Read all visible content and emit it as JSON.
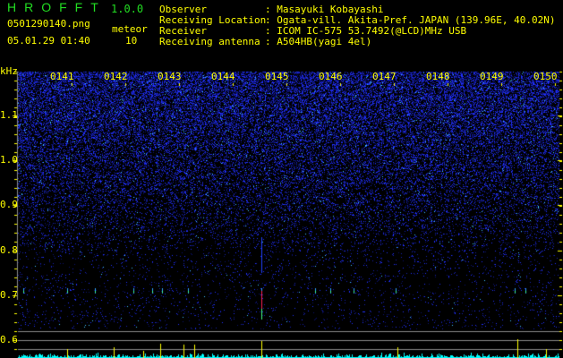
{
  "header": {
    "app_title": "HROFFT",
    "version": "1.0.0",
    "filename": "0501290140.png",
    "datetime": "05.01.29 01:40",
    "meteor_label": "meteor",
    "meteor_count": "10"
  },
  "info": [
    {
      "key": "Observer",
      "value": ": Masayuki Kobayashi"
    },
    {
      "key": "Receiving Location",
      "value": ": Ogata-vill. Akita-Pref. JAPAN (139.96E, 40.02N)"
    },
    {
      "key": "Receiver",
      "value": ": ICOM IC-575 53.7492(@LCD)MHz USB"
    },
    {
      "key": "Receiving antenna",
      "value": ": A504HB(yagi 4el)"
    }
  ],
  "spectrogram": {
    "y_unit": "kHz",
    "y_labels": [
      "1.1",
      "1.0",
      "0.9",
      "0.8",
      "0.7",
      "0.6"
    ],
    "x_labels": [
      "0141",
      "0142",
      "0143",
      "0144",
      "0145",
      "0146",
      "0147",
      "0148",
      "0149",
      "0150"
    ],
    "colors": {
      "noise": "#2030ff",
      "signal_strong": "#ff2040",
      "histogram": "#00ffff",
      "meteor_marker": "#ffff00",
      "axis": "#ffff00"
    }
  }
}
